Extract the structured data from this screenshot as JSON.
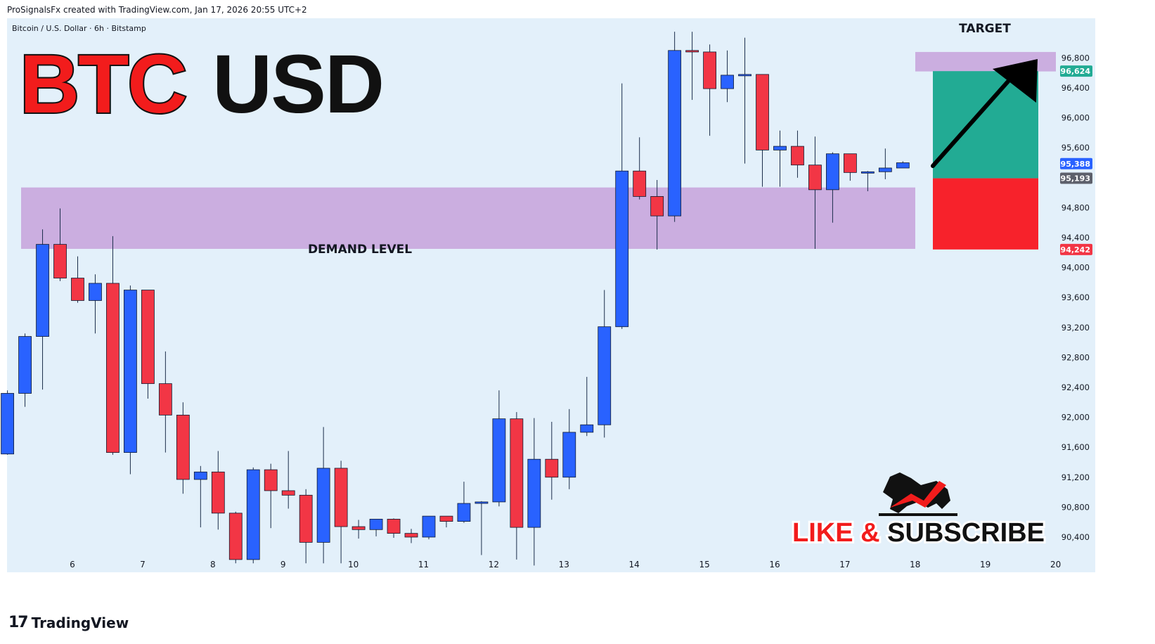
{
  "header": {
    "credit": "ProSignalsFx created with TradingView.com, Jan 17, 2026 20:55 UTC+2"
  },
  "footer": {
    "logo_mark": "17",
    "logo_text": "TradingView"
  },
  "colors": {
    "background": "#e3f0fa",
    "bull": "#2962ff",
    "bear": "#f23645",
    "zone": "#cbaee0",
    "profit": "#22ab94",
    "loss": "#f7222b",
    "title_red": "#f21c1c",
    "title_black": "#111111"
  },
  "overlay": {
    "title_part1": "BTC",
    "title_part2": "USD",
    "demand_label": "DEMAND LEVEL",
    "target_label": "TARGET",
    "promo_text_1": "LIKE",
    "promo_text_amp": " & ",
    "promo_text_2": "SUBSCRIBE"
  },
  "chart_data": {
    "type": "candlestick",
    "title": "Bitcoin / U.S. Dollar · 6h · Bitstamp",
    "x_tick_labels": [
      "6",
      "7",
      "8",
      "9",
      "10",
      "11",
      "12",
      "13",
      "14",
      "15",
      "16",
      "17",
      "18",
      "19",
      "20"
    ],
    "y_tick_labels": [
      "96,800",
      "96,400",
      "96,000",
      "95,600",
      "95,200",
      "94,800",
      "94,400",
      "94,000",
      "93,600",
      "93,200",
      "92,800",
      "92,400",
      "92,000",
      "91,600",
      "91,200",
      "90,800",
      "90,400"
    ],
    "ylim": [
      89930,
      97330
    ],
    "price_labels": [
      {
        "value": "96,624",
        "price": 96624,
        "color": "#22ab94"
      },
      {
        "value": "95,388",
        "price": 95388,
        "color": "#2962ff"
      },
      {
        "value": "95,193",
        "price": 95193,
        "color": "#5d606b"
      },
      {
        "value": "94,242",
        "price": 94242,
        "color": "#f23645"
      }
    ],
    "demand_zone": {
      "low": 94250,
      "high": 95070
    },
    "target_zone": {
      "low": 96620,
      "high": 96880
    },
    "position": {
      "entry": 95193,
      "target": 96624,
      "stop": 94242
    },
    "candles": [
      {
        "o": 91510,
        "h": 92360,
        "l": 91500,
        "c": 92320
      },
      {
        "o": 92320,
        "h": 93120,
        "l": 92140,
        "c": 93080
      },
      {
        "o": 93080,
        "h": 94510,
        "l": 92370,
        "c": 94310
      },
      {
        "o": 94310,
        "h": 94790,
        "l": 93820,
        "c": 93860
      },
      {
        "o": 93860,
        "h": 94150,
        "l": 93530,
        "c": 93560
      },
      {
        "o": 93560,
        "h": 93910,
        "l": 93120,
        "c": 93790
      },
      {
        "o": 93790,
        "h": 94420,
        "l": 91500,
        "c": 91530
      },
      {
        "o": 91530,
        "h": 93760,
        "l": 91240,
        "c": 93700
      },
      {
        "o": 93700,
        "h": 93700,
        "l": 92250,
        "c": 92450
      },
      {
        "o": 92450,
        "h": 92880,
        "l": 91530,
        "c": 92030
      },
      {
        "o": 92030,
        "h": 92200,
        "l": 90980,
        "c": 91170
      },
      {
        "o": 91170,
        "h": 91350,
        "l": 90530,
        "c": 91270
      },
      {
        "o": 91270,
        "h": 91550,
        "l": 90500,
        "c": 90720
      },
      {
        "o": 90720,
        "h": 90740,
        "l": 90050,
        "c": 90100
      },
      {
        "o": 90100,
        "h": 91330,
        "l": 90050,
        "c": 91300
      },
      {
        "o": 91300,
        "h": 91380,
        "l": 90520,
        "c": 91020
      },
      {
        "o": 91020,
        "h": 91550,
        "l": 90780,
        "c": 90960
      },
      {
        "o": 90960,
        "h": 91040,
        "l": 90050,
        "c": 90330
      },
      {
        "o": 90330,
        "h": 91870,
        "l": 90050,
        "c": 91320
      },
      {
        "o": 91320,
        "h": 91420,
        "l": 90050,
        "c": 90540
      },
      {
        "o": 90540,
        "h": 90630,
        "l": 90380,
        "c": 90500
      },
      {
        "o": 90500,
        "h": 90640,
        "l": 90410,
        "c": 90640
      },
      {
        "o": 90640,
        "h": 90650,
        "l": 90390,
        "c": 90450
      },
      {
        "o": 90450,
        "h": 90510,
        "l": 90320,
        "c": 90400
      },
      {
        "o": 90400,
        "h": 90680,
        "l": 90370,
        "c": 90680
      },
      {
        "o": 90680,
        "h": 90680,
        "l": 90530,
        "c": 90610
      },
      {
        "o": 90610,
        "h": 91140,
        "l": 90590,
        "c": 90850
      },
      {
        "o": 90850,
        "h": 90880,
        "l": 90160,
        "c": 90870
      },
      {
        "o": 90870,
        "h": 92360,
        "l": 90810,
        "c": 91980
      },
      {
        "o": 91980,
        "h": 92070,
        "l": 90100,
        "c": 90530
      },
      {
        "o": 90530,
        "h": 91990,
        "l": 90020,
        "c": 91440
      },
      {
        "o": 91440,
        "h": 91940,
        "l": 90900,
        "c": 91200
      },
      {
        "o": 91200,
        "h": 92110,
        "l": 91040,
        "c": 91800
      },
      {
        "o": 91800,
        "h": 92540,
        "l": 91750,
        "c": 91900
      },
      {
        "o": 91900,
        "h": 93700,
        "l": 91730,
        "c": 93210
      },
      {
        "o": 93210,
        "h": 96460,
        "l": 93180,
        "c": 95290
      },
      {
        "o": 95290,
        "h": 95740,
        "l": 94910,
        "c": 94950
      },
      {
        "o": 94950,
        "h": 95170,
        "l": 94240,
        "c": 94690
      },
      {
        "o": 94690,
        "h": 97150,
        "l": 94610,
        "c": 96900
      },
      {
        "o": 96900,
        "h": 97150,
        "l": 96240,
        "c": 96880
      },
      {
        "o": 96880,
        "h": 96980,
        "l": 95760,
        "c": 96390
      },
      {
        "o": 96390,
        "h": 96900,
        "l": 96210,
        "c": 96570
      },
      {
        "o": 96570,
        "h": 97070,
        "l": 95390,
        "c": 96580
      },
      {
        "o": 96580,
        "h": 96580,
        "l": 95080,
        "c": 95570
      },
      {
        "o": 95570,
        "h": 95830,
        "l": 95080,
        "c": 95620
      },
      {
        "o": 95620,
        "h": 95830,
        "l": 95200,
        "c": 95370
      },
      {
        "o": 95370,
        "h": 95750,
        "l": 94250,
        "c": 95040
      },
      {
        "o": 95040,
        "h": 95540,
        "l": 94600,
        "c": 95520
      },
      {
        "o": 95520,
        "h": 95520,
        "l": 95160,
        "c": 95270
      },
      {
        "o": 95270,
        "h": 95290,
        "l": 95020,
        "c": 95280
      },
      {
        "o": 95280,
        "h": 95590,
        "l": 95180,
        "c": 95330
      },
      {
        "o": 95330,
        "h": 95420,
        "l": 95330,
        "c": 95400
      }
    ]
  }
}
